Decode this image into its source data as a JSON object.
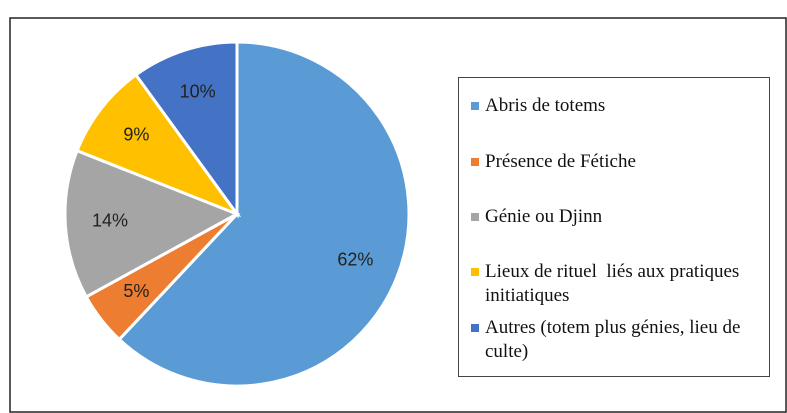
{
  "chart_data": {
    "type": "pie",
    "categories": [
      "Abris de totems",
      "Présence de Fétiche",
      "Génie ou Djinn",
      "Lieux de rituel  liés aux pratiques initiatiques",
      "Autres (totem plus génies, lieu de culte)"
    ],
    "values": [
      62,
      5,
      14,
      9,
      10
    ],
    "value_labels": [
      "62%",
      "5%",
      "14%",
      "9%",
      "10%"
    ],
    "colors": [
      "#5b9bd5",
      "#ed7d31",
      "#a5a5a5",
      "#ffc000",
      "#4472c4"
    ],
    "legend": "right"
  }
}
